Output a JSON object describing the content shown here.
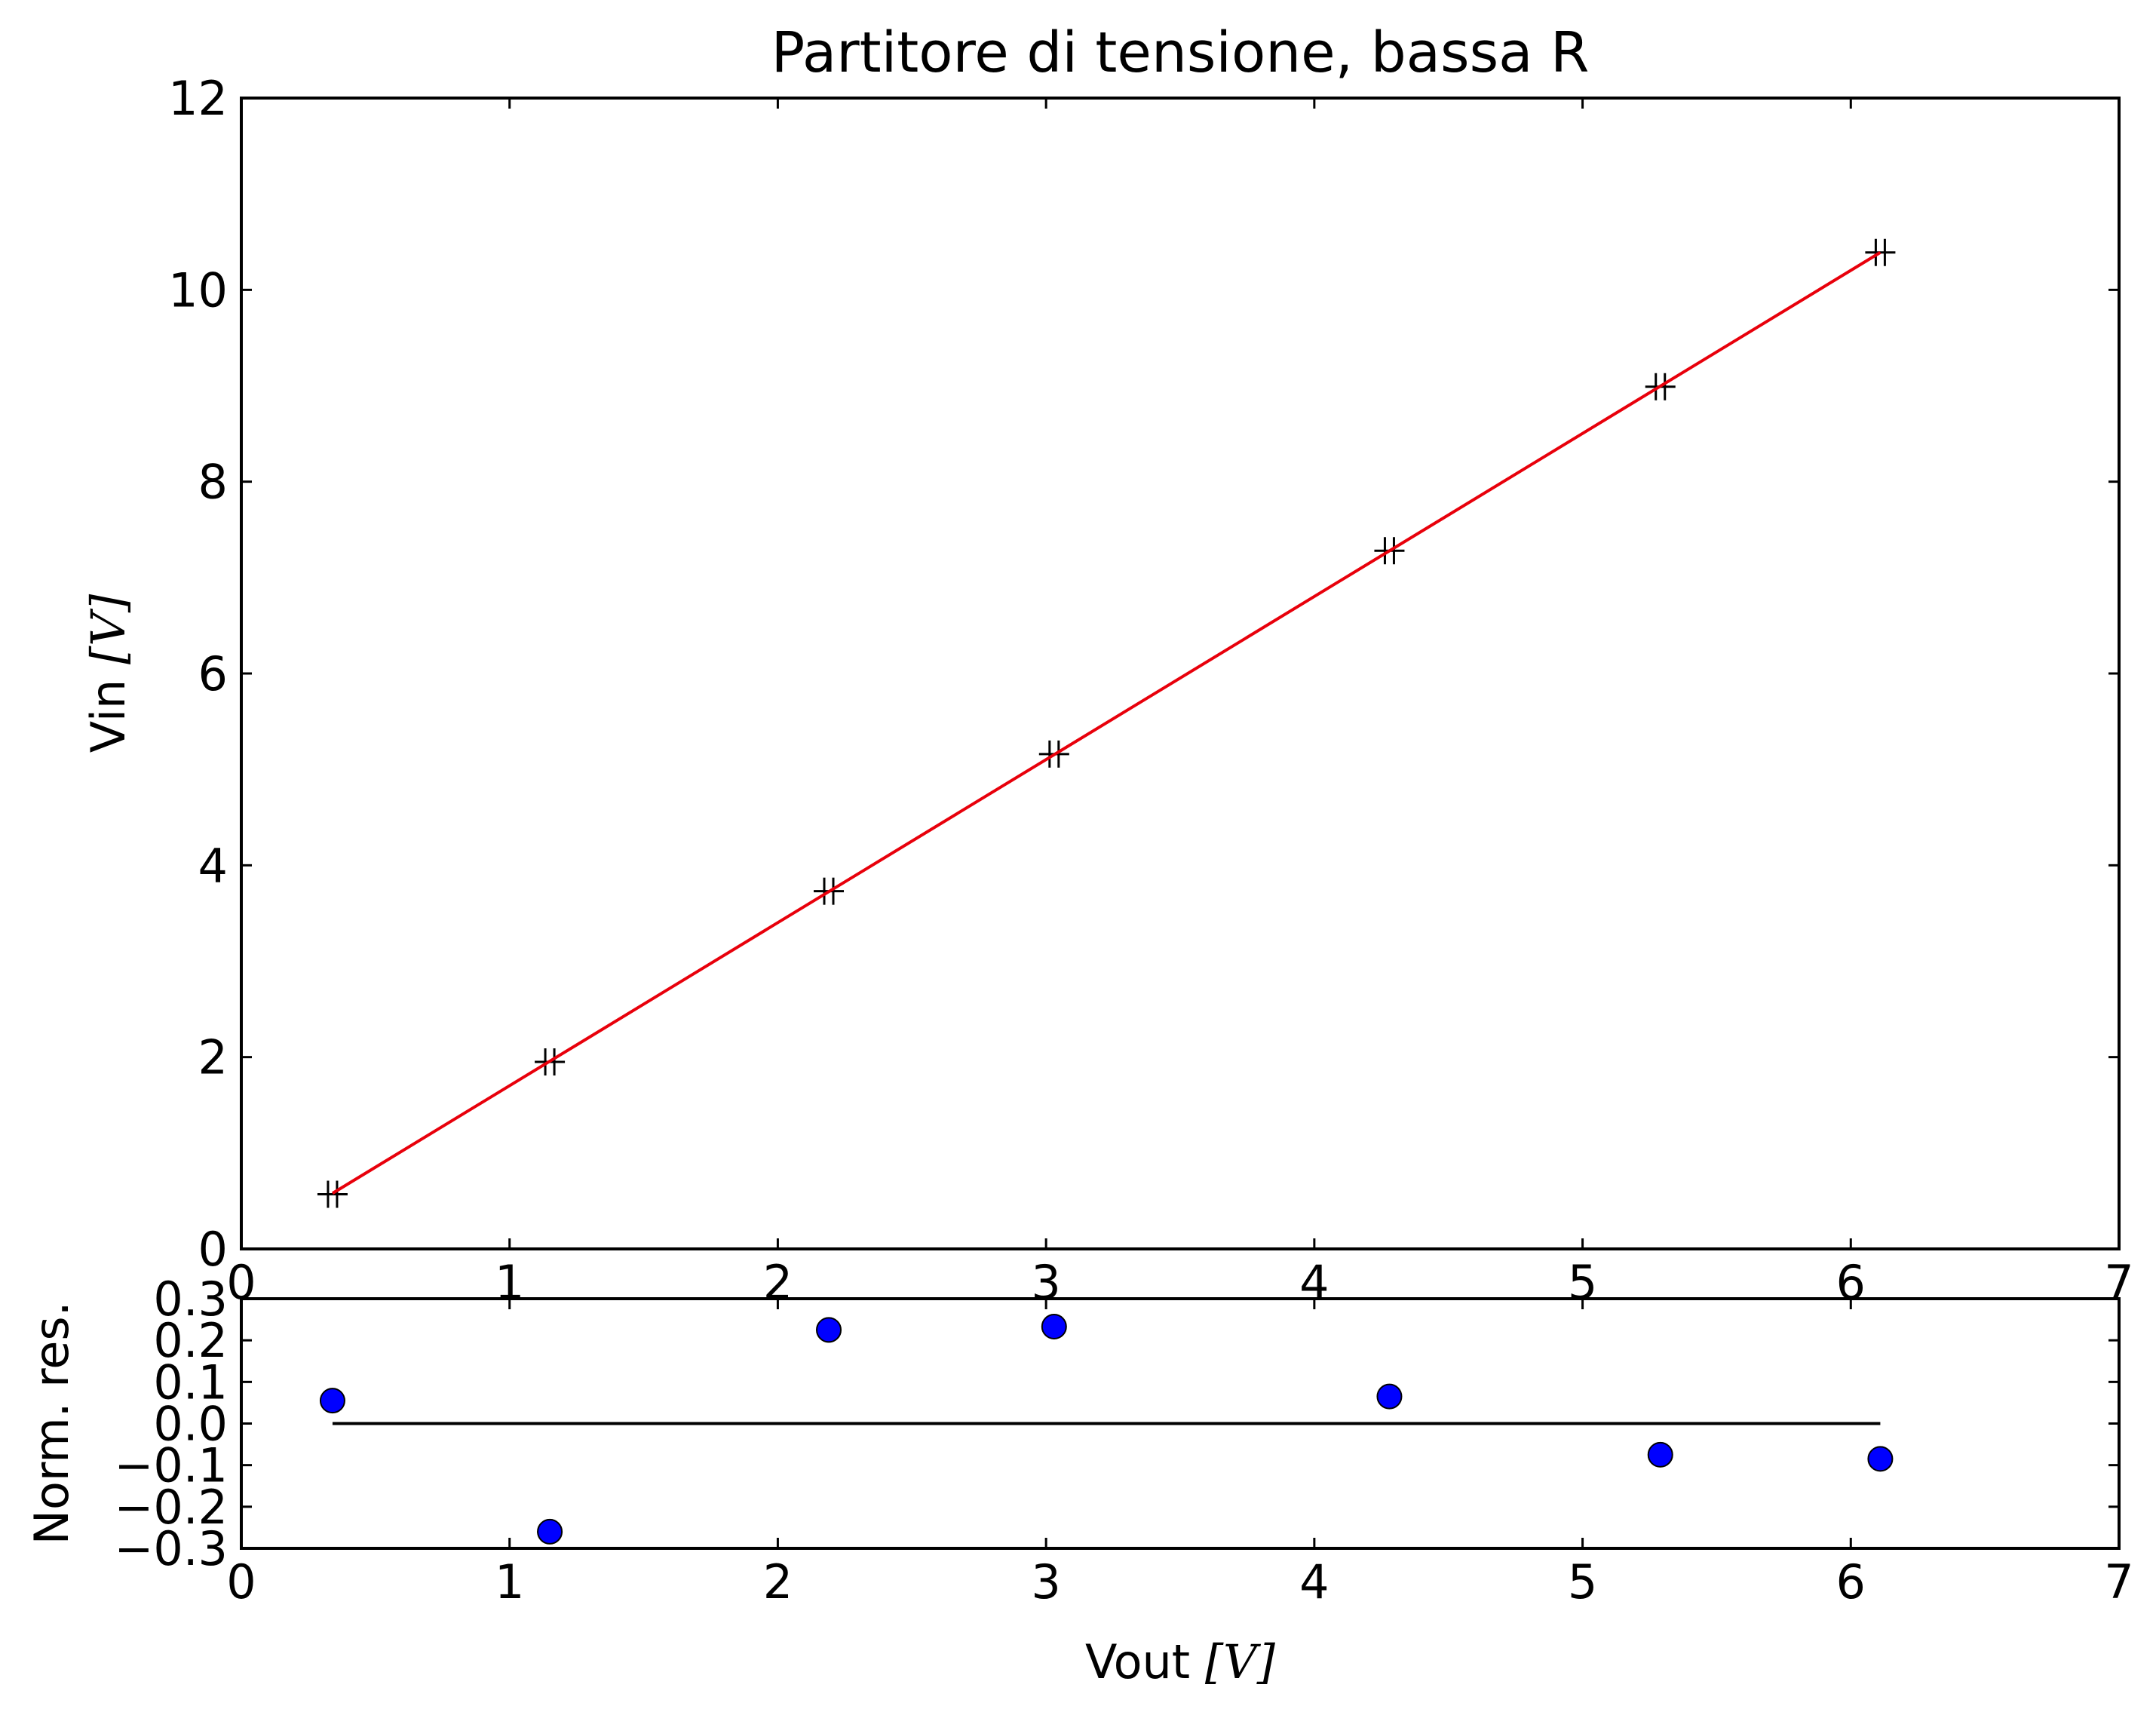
{
  "chart_data": [
    {
      "type": "scatter",
      "title": "Partitore di tensione, bassa R",
      "xlabel": "",
      "ylabel": "Vin [V]",
      "ylabel_text": "Vin ",
      "ylabel_unit": "[V]",
      "xlim": [
        0,
        7
      ],
      "ylim": [
        0,
        12
      ],
      "xticks": [
        "0",
        "1",
        "2",
        "3",
        "4",
        "5",
        "6",
        "7"
      ],
      "yticks": [
        "0",
        "2",
        "4",
        "6",
        "8",
        "10",
        "12"
      ],
      "grid": false,
      "series": [
        {
          "marker": "+",
          "color": "#000000",
          "x": [
            0.34,
            1.15,
            2.19,
            3.03,
            4.28,
            5.29,
            6.11
          ],
          "y": [
            0.57,
            1.95,
            3.73,
            5.16,
            7.28,
            8.99,
            10.39
          ]
        },
        {
          "line": true,
          "color": "#e8000b",
          "x": [
            0.34,
            6.11
          ],
          "y": [
            0.58,
            10.39
          ]
        }
      ]
    },
    {
      "type": "scatter",
      "title": "",
      "xlabel": "Vout [V]",
      "xlabel_text": "Vout ",
      "xlabel_unit": "[V]",
      "ylabel": "Norm. res.",
      "xlim": [
        0,
        7
      ],
      "ylim": [
        -0.3,
        0.3
      ],
      "xticks": [
        "0",
        "1",
        "2",
        "3",
        "4",
        "5",
        "6",
        "7"
      ],
      "yticks": [
        "0.3",
        "0.2",
        "0.1",
        "0.0",
        "−0.1",
        "−0.2",
        "−0.3"
      ],
      "ytick_values": [
        0.3,
        0.2,
        0.1,
        0.0,
        -0.1,
        -0.2,
        -0.3
      ],
      "grid": false,
      "series": [
        {
          "marker": "o",
          "color": "#0000ff",
          "x": [
            0.34,
            1.15,
            2.19,
            3.03,
            4.28,
            5.29,
            6.11
          ],
          "y": [
            0.055,
            -0.26,
            0.225,
            0.233,
            0.065,
            -0.075,
            -0.085
          ]
        },
        {
          "line": true,
          "color": "#000000",
          "x": [
            0.34,
            6.11
          ],
          "y": [
            0.0,
            0.0
          ]
        }
      ]
    }
  ]
}
